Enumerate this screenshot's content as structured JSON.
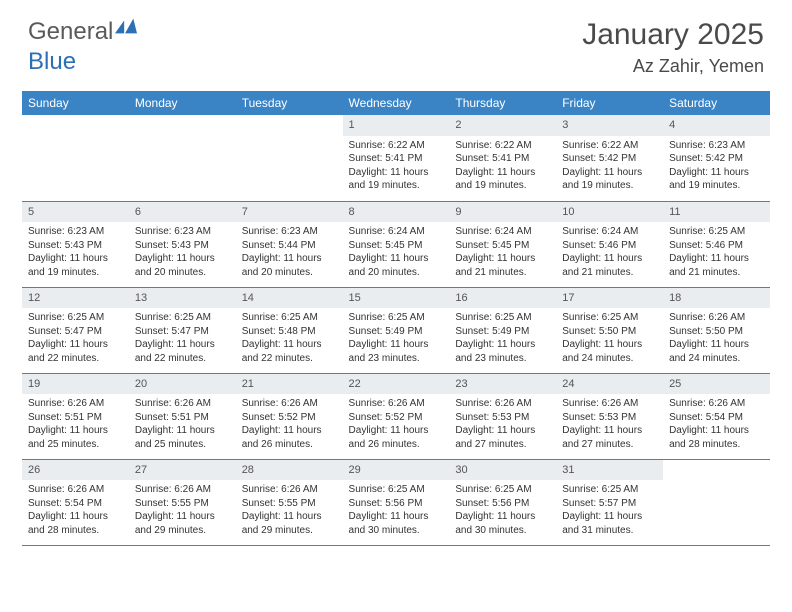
{
  "brand": {
    "part1": "General",
    "part2": "Blue"
  },
  "title": "January 2025",
  "location": "Az Zahir, Yemen",
  "colors": {
    "header_bg": "#3a84c6",
    "header_text": "#ffffff",
    "daynum_bg": "#e9edef",
    "row_border": "#5f7c99",
    "title_color": "#4a4a4a",
    "brand_blue": "#2d6fb5"
  },
  "typography": {
    "title_fontsize": 30,
    "location_fontsize": 18,
    "dayheader_fontsize": 12,
    "cell_fontsize": 10
  },
  "day_headers": [
    "Sunday",
    "Monday",
    "Tuesday",
    "Wednesday",
    "Thursday",
    "Friday",
    "Saturday"
  ],
  "weeks": [
    [
      null,
      null,
      null,
      {
        "n": "1",
        "sr": "6:22 AM",
        "ss": "5:41 PM",
        "dl": "11 hours and 19 minutes."
      },
      {
        "n": "2",
        "sr": "6:22 AM",
        "ss": "5:41 PM",
        "dl": "11 hours and 19 minutes."
      },
      {
        "n": "3",
        "sr": "6:22 AM",
        "ss": "5:42 PM",
        "dl": "11 hours and 19 minutes."
      },
      {
        "n": "4",
        "sr": "6:23 AM",
        "ss": "5:42 PM",
        "dl": "11 hours and 19 minutes."
      }
    ],
    [
      {
        "n": "5",
        "sr": "6:23 AM",
        "ss": "5:43 PM",
        "dl": "11 hours and 19 minutes."
      },
      {
        "n": "6",
        "sr": "6:23 AM",
        "ss": "5:43 PM",
        "dl": "11 hours and 20 minutes."
      },
      {
        "n": "7",
        "sr": "6:23 AM",
        "ss": "5:44 PM",
        "dl": "11 hours and 20 minutes."
      },
      {
        "n": "8",
        "sr": "6:24 AM",
        "ss": "5:45 PM",
        "dl": "11 hours and 20 minutes."
      },
      {
        "n": "9",
        "sr": "6:24 AM",
        "ss": "5:45 PM",
        "dl": "11 hours and 21 minutes."
      },
      {
        "n": "10",
        "sr": "6:24 AM",
        "ss": "5:46 PM",
        "dl": "11 hours and 21 minutes."
      },
      {
        "n": "11",
        "sr": "6:25 AM",
        "ss": "5:46 PM",
        "dl": "11 hours and 21 minutes."
      }
    ],
    [
      {
        "n": "12",
        "sr": "6:25 AM",
        "ss": "5:47 PM",
        "dl": "11 hours and 22 minutes."
      },
      {
        "n": "13",
        "sr": "6:25 AM",
        "ss": "5:47 PM",
        "dl": "11 hours and 22 minutes."
      },
      {
        "n": "14",
        "sr": "6:25 AM",
        "ss": "5:48 PM",
        "dl": "11 hours and 22 minutes."
      },
      {
        "n": "15",
        "sr": "6:25 AM",
        "ss": "5:49 PM",
        "dl": "11 hours and 23 minutes."
      },
      {
        "n": "16",
        "sr": "6:25 AM",
        "ss": "5:49 PM",
        "dl": "11 hours and 23 minutes."
      },
      {
        "n": "17",
        "sr": "6:25 AM",
        "ss": "5:50 PM",
        "dl": "11 hours and 24 minutes."
      },
      {
        "n": "18",
        "sr": "6:26 AM",
        "ss": "5:50 PM",
        "dl": "11 hours and 24 minutes."
      }
    ],
    [
      {
        "n": "19",
        "sr": "6:26 AM",
        "ss": "5:51 PM",
        "dl": "11 hours and 25 minutes."
      },
      {
        "n": "20",
        "sr": "6:26 AM",
        "ss": "5:51 PM",
        "dl": "11 hours and 25 minutes."
      },
      {
        "n": "21",
        "sr": "6:26 AM",
        "ss": "5:52 PM",
        "dl": "11 hours and 26 minutes."
      },
      {
        "n": "22",
        "sr": "6:26 AM",
        "ss": "5:52 PM",
        "dl": "11 hours and 26 minutes."
      },
      {
        "n": "23",
        "sr": "6:26 AM",
        "ss": "5:53 PM",
        "dl": "11 hours and 27 minutes."
      },
      {
        "n": "24",
        "sr": "6:26 AM",
        "ss": "5:53 PM",
        "dl": "11 hours and 27 minutes."
      },
      {
        "n": "25",
        "sr": "6:26 AM",
        "ss": "5:54 PM",
        "dl": "11 hours and 28 minutes."
      }
    ],
    [
      {
        "n": "26",
        "sr": "6:26 AM",
        "ss": "5:54 PM",
        "dl": "11 hours and 28 minutes."
      },
      {
        "n": "27",
        "sr": "6:26 AM",
        "ss": "5:55 PM",
        "dl": "11 hours and 29 minutes."
      },
      {
        "n": "28",
        "sr": "6:26 AM",
        "ss": "5:55 PM",
        "dl": "11 hours and 29 minutes."
      },
      {
        "n": "29",
        "sr": "6:25 AM",
        "ss": "5:56 PM",
        "dl": "11 hours and 30 minutes."
      },
      {
        "n": "30",
        "sr": "6:25 AM",
        "ss": "5:56 PM",
        "dl": "11 hours and 30 minutes."
      },
      {
        "n": "31",
        "sr": "6:25 AM",
        "ss": "5:57 PM",
        "dl": "11 hours and 31 minutes."
      },
      null
    ]
  ],
  "labels": {
    "sunrise": "Sunrise:",
    "sunset": "Sunset:",
    "daylight": "Daylight:"
  }
}
